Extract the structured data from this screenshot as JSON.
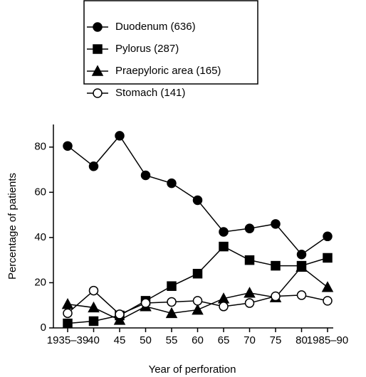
{
  "chart_data": {
    "type": "line",
    "x_label": "Year of perforation",
    "y_label": "Percentage of patients",
    "categories": [
      "1935–39",
      "40",
      "45",
      "50",
      "55",
      "60",
      "65",
      "70",
      "75",
      "80",
      "1985–90"
    ],
    "series": [
      {
        "name": "Duodenum (636)",
        "color": "#000000",
        "marker": "circle",
        "marker_fill": "#000000",
        "values": [
          80.5,
          71.5,
          85,
          67.5,
          64,
          56.5,
          42.5,
          44,
          46,
          32.5,
          40.5
        ]
      },
      {
        "name": "Pylorus (287)",
        "color": "#000000",
        "marker": "square",
        "marker_fill": "#000000",
        "values": [
          2,
          3,
          5.5,
          12,
          18.5,
          24,
          36,
          30,
          27.5,
          27.5,
          31
        ]
      },
      {
        "name": "Praepyloric area (165)",
        "color": "#000000",
        "marker": "triangle",
        "marker_fill": "#000000",
        "values": [
          10.5,
          9,
          3.5,
          9.5,
          6.5,
          8,
          13,
          15.5,
          13.5,
          27,
          18
        ]
      },
      {
        "name": "Stomach (141)",
        "color": "#000000",
        "marker": "circle",
        "marker_fill": "#ffffff",
        "values": [
          6.5,
          16.5,
          6,
          11,
          11.5,
          12,
          9.5,
          11,
          14,
          14.5,
          12
        ]
      }
    ],
    "ylim": [
      0,
      90
    ],
    "yticks": [
      0,
      20,
      40,
      60,
      80
    ],
    "grid": false
  }
}
